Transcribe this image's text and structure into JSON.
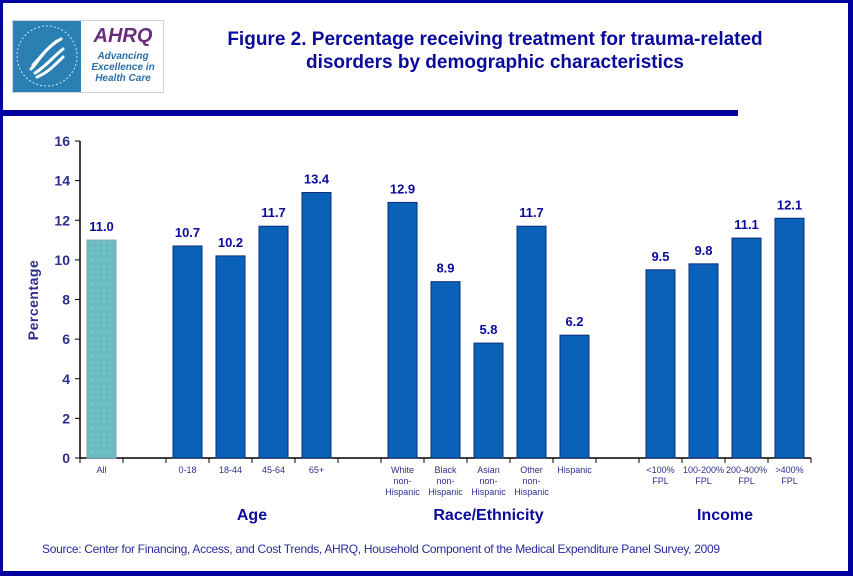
{
  "logo": {
    "agency": "AHRQ",
    "tagline": [
      "Advancing",
      "Excellence in",
      "Health Care"
    ],
    "seal_name": "hhs-eagle-seal"
  },
  "title": [
    "Figure 2. Percentage receiving treatment for trauma-related",
    "disorders by demographic characteristics"
  ],
  "source": "Source: Center for Financing, Access, and Cost Trends, AHRQ, Household Component of the Medical Expenditure Panel Survey, 2009",
  "colors": {
    "frame": "#0000a0",
    "bar": "#0a62b8",
    "bar_all": "#6bbcc0",
    "text": "#0a0a9c"
  },
  "chart_data": {
    "type": "bar",
    "title": "Figure 2. Percentage receiving treatment for trauma-related disorders by demographic characteristics",
    "xlabel": "",
    "ylabel": "Percentage",
    "ylim": [
      0,
      16
    ],
    "yticks": [
      0,
      2,
      4,
      6,
      8,
      10,
      12,
      14,
      16
    ],
    "grid": false,
    "slots": 17,
    "categories": [
      {
        "slot": 0,
        "label": [
          "All"
        ],
        "value": 11.0,
        "label_text": "11.0",
        "highlight": true
      },
      {
        "slot": 2,
        "label": [
          "0-18"
        ],
        "value": 10.7,
        "label_text": "10.7"
      },
      {
        "slot": 3,
        "label": [
          "18-44"
        ],
        "value": 10.2,
        "label_text": "10.2"
      },
      {
        "slot": 4,
        "label": [
          "45-64"
        ],
        "value": 11.7,
        "label_text": "11.7"
      },
      {
        "slot": 5,
        "label": [
          "65+"
        ],
        "value": 13.4,
        "label_text": "13.4"
      },
      {
        "slot": 7,
        "label": [
          "White",
          "non-",
          "Hispanic"
        ],
        "value": 12.9,
        "label_text": "12.9"
      },
      {
        "slot": 8,
        "label": [
          "Black",
          "non-",
          "Hispanic"
        ],
        "value": 8.9,
        "label_text": "8.9"
      },
      {
        "slot": 9,
        "label": [
          "Asian",
          "non-",
          "Hispanic"
        ],
        "value": 5.8,
        "label_text": "5.8"
      },
      {
        "slot": 10,
        "label": [
          "Other",
          "non-",
          "Hispanic"
        ],
        "value": 11.7,
        "label_text": "11.7"
      },
      {
        "slot": 11,
        "label": [
          "Hispanic"
        ],
        "value": 6.2,
        "label_text": "6.2"
      },
      {
        "slot": 13,
        "label": [
          "<100%",
          "FPL"
        ],
        "value": 9.5,
        "label_text": "9.5"
      },
      {
        "slot": 14,
        "label": [
          "100-200%",
          "FPL"
        ],
        "value": 9.8,
        "label_text": "9.8"
      },
      {
        "slot": 15,
        "label": [
          "200-400%",
          "FPL"
        ],
        "value": 11.1,
        "label_text": "11.1"
      },
      {
        "slot": 16,
        "label": [
          ">400%",
          "FPL"
        ],
        "value": 12.1,
        "label_text": "12.1"
      }
    ],
    "groups": [
      {
        "name": "Age",
        "slots": [
          2,
          5
        ]
      },
      {
        "name": "Race/Ethnicity",
        "slots": [
          7,
          11
        ]
      },
      {
        "name": "Income",
        "slots": [
          13,
          16
        ]
      }
    ]
  }
}
